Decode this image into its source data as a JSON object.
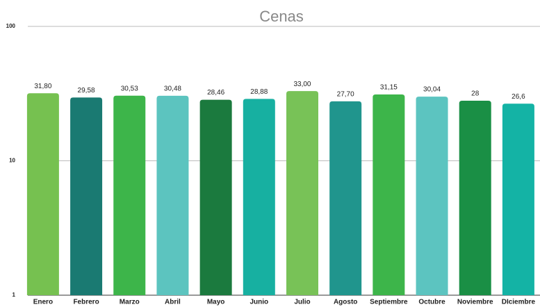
{
  "chart_data": {
    "type": "bar",
    "title": "Cenas",
    "categories": [
      "Enero",
      "Febrero",
      "Marzo",
      "Abril",
      "Mayo",
      "Junio",
      "Julio",
      "Agosto",
      "Septiembre",
      "Octubre",
      "Noviembre",
      "DIciembre"
    ],
    "values": [
      31.8,
      29.58,
      30.53,
      30.48,
      28.46,
      28.88,
      33.0,
      27.7,
      31.15,
      30.04,
      28,
      26.6
    ],
    "value_labels": [
      "31,80",
      "29,58",
      "30,53",
      "30,48",
      "28,46",
      "28,88",
      "33,00",
      "27,70",
      "31,15",
      "30,04",
      "28",
      "26,6"
    ],
    "colors": [
      "#76c150",
      "#1a7a72",
      "#3db54a",
      "#5cc4bf",
      "#1b7a3e",
      "#17b0a1",
      "#78c257",
      "#20958d",
      "#3db54a",
      "#5cc4c0",
      "#1a8f45",
      "#14b3a5"
    ],
    "ylim": [
      1,
      100
    ],
    "yticks": [
      1,
      10,
      100
    ],
    "log_scale": true,
    "grid": true
  }
}
